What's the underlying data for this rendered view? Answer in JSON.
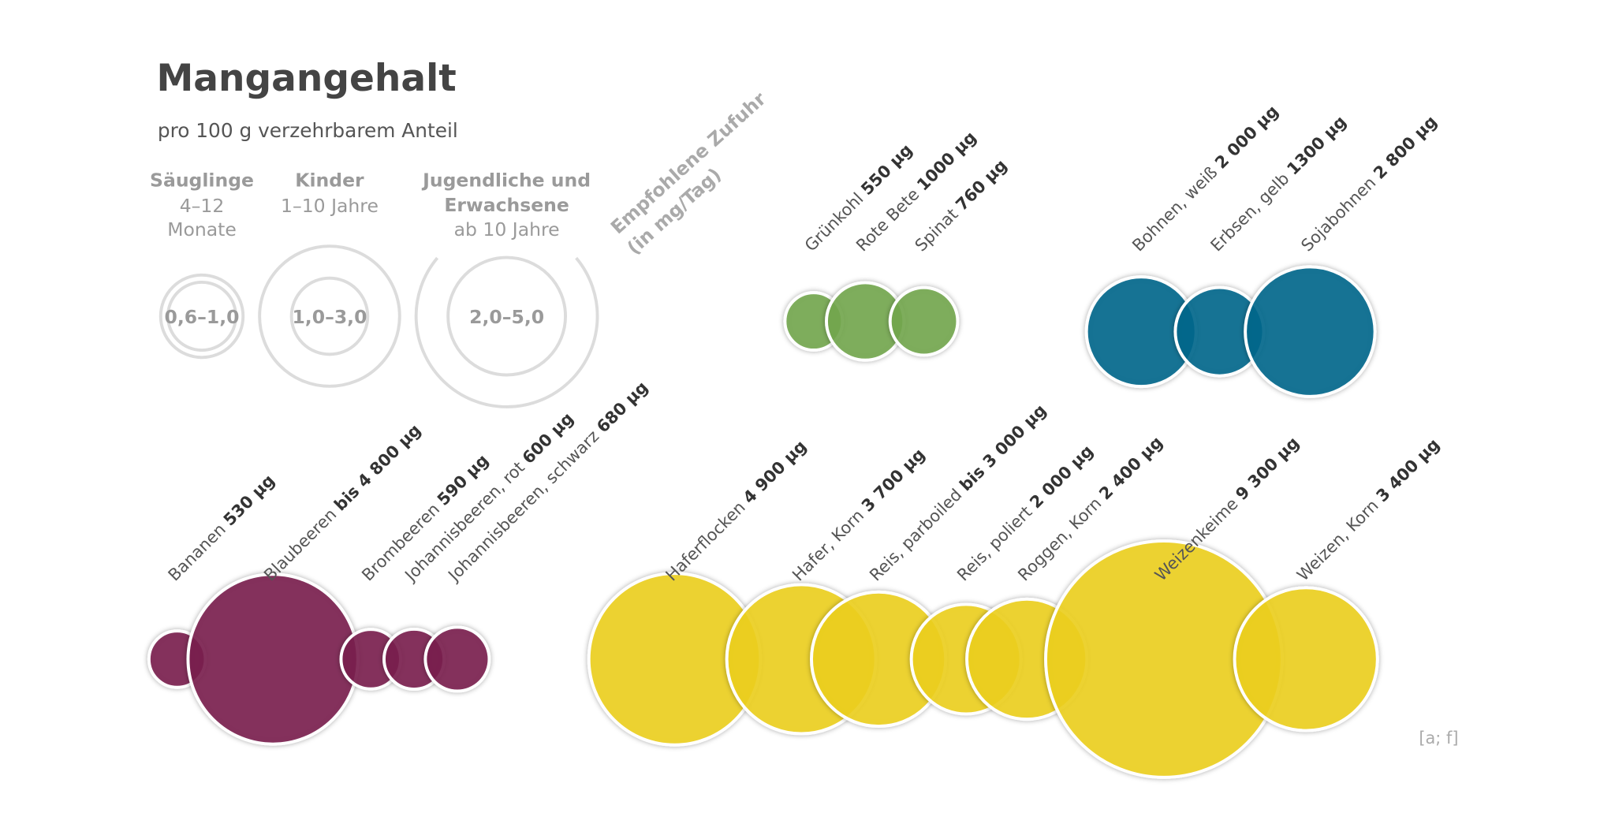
{
  "title": "Mangangehalt",
  "subtitle": "pro 100 g verzehrbarem Anteil",
  "recommendation": {
    "heading": [
      "Empfohlene Zufuhr",
      "(in mg/Tag)"
    ],
    "groups": [
      {
        "label": [
          "Säuglinge"
        ],
        "age": [
          "4–12",
          "Monate"
        ],
        "range": "0,6–1,0"
      },
      {
        "label": [
          "Kinder"
        ],
        "age": [
          "1–10 Jahre"
        ],
        "range": "1,0–3,0"
      },
      {
        "label": [
          "Jugendliche und",
          "Erwachsene"
        ],
        "age": [
          "ab 10 Jahre"
        ],
        "range": "2,0–5,0"
      }
    ]
  },
  "foods": {
    "groups": [
      {
        "color": "#74a84f",
        "items": [
          {
            "name": "Grünkohl",
            "amount": "550 µg",
            "value": 550
          },
          {
            "name": "Rote Bete",
            "amount": "1000 µg",
            "value": 1000
          },
          {
            "name": "Spinat",
            "amount": "760 µg",
            "value": 760
          }
        ]
      },
      {
        "color": "#00688c",
        "items": [
          {
            "name": "Bohnen, weiß",
            "amount": "2 000 µg",
            "value": 2000
          },
          {
            "name": "Erbsen, gelb",
            "amount": "1300 µg",
            "value": 1300
          },
          {
            "name": "Sojabohnen",
            "amount": "2 800 µg",
            "value": 2800
          }
        ]
      },
      {
        "color": "#7b214f",
        "items": [
          {
            "name": "Bananen",
            "amount": "530 µg",
            "value": 530
          },
          {
            "name": "Blaubeeren",
            "amount": "bis 4 800 µg",
            "value": 4800
          },
          {
            "name": "Brombeeren",
            "amount": "590 µg",
            "value": 590
          },
          {
            "name": "Johannisbeeren, rot",
            "amount": "600 µg",
            "value": 600
          },
          {
            "name": "Johannisbeeren, schwarz",
            "amount": "680 µg",
            "value": 680
          }
        ]
      },
      {
        "color": "#efd21c",
        "items": [
          {
            "name": "Haferflocken",
            "amount": "4 900 µg",
            "value": 4900
          },
          {
            "name": "Hafer, Korn",
            "amount": "3 700 µg",
            "value": 3700
          },
          {
            "name": "Reis, parboiled",
            "amount": "bis 3 000 µg",
            "value": 3000
          },
          {
            "name": "Reis, poliert",
            "amount": "2 000 µg",
            "value": 2000
          },
          {
            "name": "Roggen, Korn",
            "amount": "2 400 µg",
            "value": 2400
          },
          {
            "name": "Weizenkeime",
            "amount": "9 300 µg",
            "value": 9300
          },
          {
            "name": "Weizen, Korn",
            "amount": "3 400 µg",
            "value": 3400
          }
        ]
      }
    ]
  },
  "source": "[a; f]"
}
